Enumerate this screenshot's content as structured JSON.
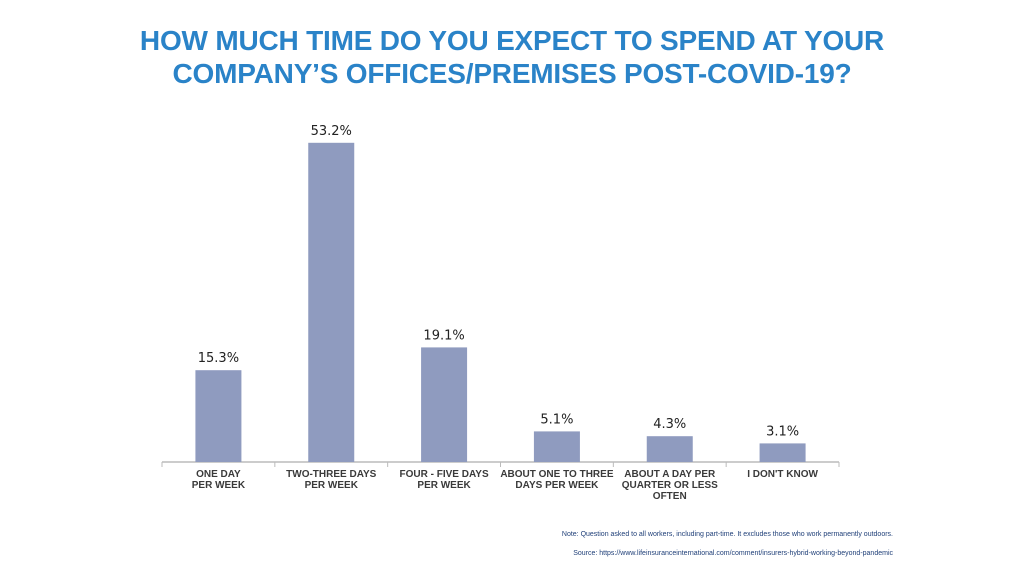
{
  "chart_data": {
    "type": "bar",
    "title_lines": [
      "HOW MUCH TIME DO YOU EXPECT TO SPEND AT YOUR",
      "COMPANY’S OFFICES/PREMISES POST-COVID-19?"
    ],
    "categories": [
      [
        "ONE DAY",
        "PER WEEK"
      ],
      [
        "TWO-THREE DAYS",
        "PER WEEK"
      ],
      [
        "FOUR - FIVE DAYS",
        "PER WEEK"
      ],
      [
        "ABOUT ONE TO THREE",
        "DAYS PER WEEK"
      ],
      [
        "ABOUT A DAY PER",
        "QUARTER OR LESS",
        "OFTEN"
      ],
      [
        "I DON'T KNOW"
      ]
    ],
    "values": [
      15.3,
      53.2,
      19.1,
      5.1,
      4.3,
      3.1
    ],
    "value_labels": [
      "15.3%",
      "53.2%",
      "19.1%",
      "5.1%",
      "4.3%",
      "3.1%"
    ],
    "ylim": [
      0,
      60
    ],
    "bar_color": "#8f9bbf",
    "grid": false,
    "legend": "none"
  },
  "note": "Note: Question asked to all workers, including part-time. It excludes those who work permanently outdoors.",
  "source": "Source: https://www.lifeinsuranceinternational.com/comment/insurers-hybrid-working-beyond-pandemic"
}
